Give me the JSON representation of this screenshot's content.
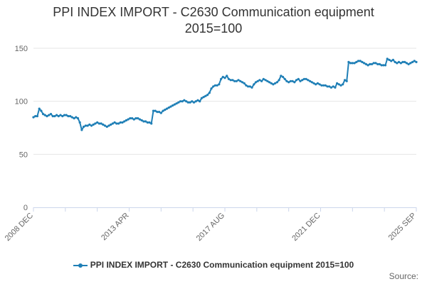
{
  "chart_data": {
    "type": "line",
    "title": "PPI INDEX IMPORT - C2630 Communication equipment",
    "subtitle": "2015=100",
    "ylim": [
      0,
      150
    ],
    "yticks": [
      0,
      50,
      100,
      150
    ],
    "xticks": [
      "2008 DEC",
      "2013 APR",
      "2017 AUG",
      "2021 DEC",
      "2025 SEP"
    ],
    "grid": "horizontal",
    "legend": "bottom",
    "series": [
      {
        "name": "PPI INDEX IMPORT - C2630 Communication equipment 2015=100",
        "color": "#1f7fb6",
        "values": [
          85,
          86,
          86,
          93,
          91,
          88,
          87,
          86,
          87,
          88,
          86,
          86,
          87,
          86,
          87,
          86,
          87,
          87,
          86,
          86,
          85,
          84,
          85,
          84,
          80,
          73,
          76,
          77,
          77,
          78,
          77,
          78,
          79,
          80,
          79,
          79,
          78,
          77,
          76,
          77,
          78,
          79,
          80,
          79,
          79,
          80,
          80,
          81,
          82,
          83,
          84,
          84,
          83,
          84,
          84,
          83,
          82,
          81,
          81,
          80,
          80,
          79,
          91,
          91,
          90,
          90,
          89,
          91,
          92,
          93,
          94,
          95,
          96,
          97,
          98,
          99,
          100,
          100,
          101,
          100,
          99,
          99,
          100,
          99,
          100,
          101,
          100,
          103,
          104,
          105,
          106,
          108,
          112,
          114,
          115,
          115,
          116,
          121,
          123,
          122,
          124,
          121,
          120,
          120,
          119,
          119,
          120,
          119,
          118,
          117,
          115,
          114,
          114,
          113,
          116,
          118,
          119,
          120,
          119,
          121,
          120,
          119,
          118,
          117,
          116,
          117,
          118,
          120,
          124,
          123,
          121,
          119,
          118,
          119,
          119,
          118,
          120,
          121,
          119,
          120,
          121,
          121,
          120,
          119,
          118,
          117,
          116,
          117,
          116,
          115,
          115,
          115,
          114,
          114,
          113,
          114,
          113,
          117,
          116,
          115,
          116,
          120,
          119,
          137,
          136,
          136,
          136,
          137,
          138,
          138,
          137,
          136,
          135,
          134,
          135,
          135,
          136,
          136,
          135,
          135,
          134,
          134,
          134,
          140,
          139,
          138,
          139,
          137,
          136,
          137,
          136,
          137,
          137,
          136,
          135,
          136,
          137,
          138,
          137
        ]
      }
    ]
  },
  "legend_label": "PPI INDEX IMPORT - C2630 Communication equipment 2015=100",
  "source_label": "Source:"
}
